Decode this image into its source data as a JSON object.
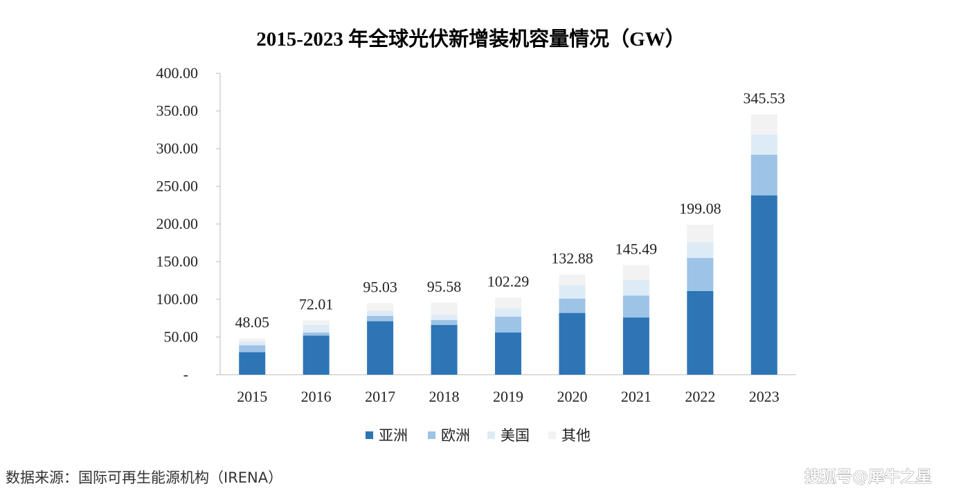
{
  "chart_data": {
    "type": "stacked-bar",
    "title": "2015-2023 年全球光伏新增装机容量情况（GW）",
    "xlabel": "",
    "ylabel": "",
    "categories": [
      "2015",
      "2016",
      "2017",
      "2018",
      "2019",
      "2020",
      "2021",
      "2022",
      "2023"
    ],
    "ylim": [
      0,
      400
    ],
    "y_ticks": [
      0,
      50,
      100,
      150,
      200,
      250,
      300,
      350,
      400
    ],
    "y_tick_labels": [
      "-",
      "50.00",
      "100.00",
      "150.00",
      "200.00",
      "250.00",
      "300.00",
      "350.00",
      "400.00"
    ],
    "totals": [
      48.05,
      72.01,
      95.03,
      95.58,
      102.29,
      132.88,
      145.49,
      199.08,
      345.53
    ],
    "total_labels": [
      "48.05",
      "72.01",
      "95.03",
      "95.58",
      "102.29",
      "132.88",
      "145.49",
      "199.08",
      "345.53"
    ],
    "series": [
      {
        "name": "亚洲",
        "color": "#2e75b6",
        "values": [
          30,
          52,
          71,
          66,
          56,
          82,
          76,
          111,
          238
        ]
      },
      {
        "name": "欧洲",
        "color": "#9dc3e6",
        "values": [
          9,
          4,
          7,
          6.5,
          21,
          19,
          29,
          44,
          54
        ]
      },
      {
        "name": "美国",
        "color": "#ddebf7",
        "values": [
          5,
          10,
          7,
          7,
          11,
          18,
          21,
          21,
          27
        ]
      },
      {
        "name": "其他",
        "color": "#f2f2f2",
        "values": [
          4.05,
          6.01,
          10.03,
          16.08,
          14.29,
          13.88,
          19.49,
          23.08,
          26.53
        ]
      }
    ],
    "grid": false,
    "legend_position": "bottom"
  },
  "source": "数据来源：国际可再生能源机构（IRENA）",
  "watermark": "搜狐号@犀牛之星"
}
